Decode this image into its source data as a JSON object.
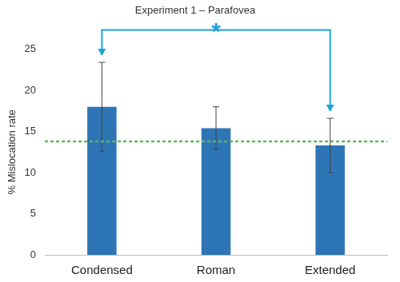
{
  "chart_data": {
    "type": "bar",
    "title": "Experiment 1 – Parafovea",
    "y_label": "% Mislocation rate",
    "categories": [
      "Condensed",
      "Roman",
      "Extended"
    ],
    "values": [
      18.0,
      15.4,
      13.3
    ],
    "errors": [
      5.4,
      2.6,
      3.3
    ],
    "color": "#2e75b6",
    "ylim": [
      0,
      25
    ],
    "yticks": [
      0,
      5,
      10,
      15,
      20,
      25
    ],
    "grid": false,
    "reference_line": 13.8,
    "annotations": [
      {
        "text": "*",
        "from": "Condensed",
        "to": "Extended"
      }
    ]
  }
}
